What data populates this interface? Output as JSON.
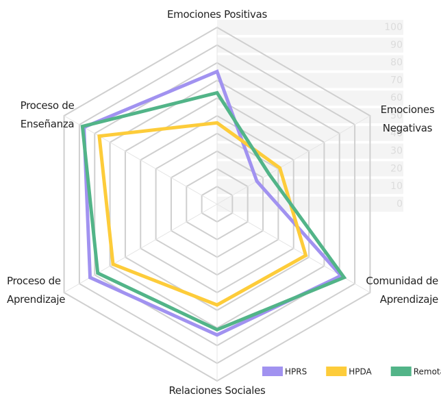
{
  "chart_data": {
    "type": "radar",
    "categories": [
      "Emociones Positivas",
      "Emociones Negativas",
      "Comunidad de Aprendizaje",
      "Relaciones Sociales",
      "Proceso de Aprendizaje",
      "Proceso de Enseñanza"
    ],
    "series": [
      {
        "name": "HPRS",
        "color": "#a192f0",
        "values": [
          75,
          26,
          81,
          74,
          83,
          87
        ]
      },
      {
        "name": "HPDA",
        "color": "#fdcc3a",
        "values": [
          46,
          41,
          58,
          57,
          68,
          77
        ]
      },
      {
        "name": "Remota",
        "color": "#52b488",
        "values": [
          63,
          34,
          83,
          71,
          78,
          88
        ]
      }
    ],
    "ylim": [
      0,
      100
    ],
    "yticks": [
      0,
      10,
      20,
      30,
      40,
      50,
      60,
      70,
      80,
      90,
      100
    ],
    "grid": true,
    "legend": "bottom-right"
  }
}
